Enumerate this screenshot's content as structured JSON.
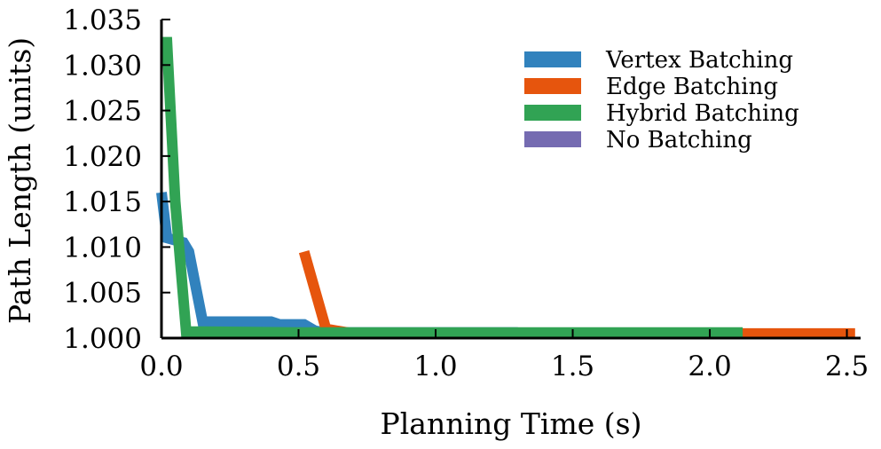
{
  "chart_data": {
    "type": "line",
    "title": "",
    "xlabel": "Planning Time (s)",
    "ylabel": "Path Length (units)",
    "xlim": [
      0.0,
      2.55
    ],
    "ylim": [
      1.0,
      1.035
    ],
    "xticks": [
      0.0,
      0.5,
      1.0,
      1.5,
      2.0,
      2.5
    ],
    "xtick_labels": [
      "0.0",
      "0.5",
      "1.0",
      "1.5",
      "2.0",
      "2.5"
    ],
    "yticks": [
      1.0,
      1.005,
      1.01,
      1.015,
      1.02,
      1.025,
      1.03,
      1.035
    ],
    "ytick_labels": [
      "1.000",
      "1.005",
      "1.010",
      "1.015",
      "1.020",
      "1.025",
      "1.030",
      "1.035"
    ],
    "grid": false,
    "legend_position": "top-right",
    "series": [
      {
        "name": "Vertex Batching",
        "color": "#3182bd",
        "x": [
          0.0,
          0.02,
          0.08,
          0.1,
          0.15,
          0.4,
          0.43,
          0.52,
          0.56,
          0.6,
          0.75,
          1.3
        ],
        "y": [
          1.016,
          1.011,
          1.0105,
          1.0095,
          1.0018,
          1.0018,
          1.0015,
          1.0015,
          1.0008,
          1.0006,
          1.0006,
          1.0006
        ]
      },
      {
        "name": "Edge Batching",
        "color": "#e6550d",
        "x": [
          0.52,
          0.6,
          0.7,
          0.8,
          1.5,
          2.0,
          2.53
        ],
        "y": [
          1.0095,
          1.001,
          1.0005,
          1.0005,
          1.0005,
          1.0005,
          1.0005
        ]
      },
      {
        "name": "Hybrid Batching",
        "color": "#31a354",
        "x": [
          0.0,
          0.02,
          0.05,
          0.09,
          0.15,
          0.5,
          1.0,
          1.5,
          2.0,
          2.12
        ],
        "y": [
          1.0325,
          1.0325,
          1.015,
          1.0007,
          1.0007,
          1.0006,
          1.0006,
          1.0006,
          1.0006,
          1.0006
        ]
      },
      {
        "name": "No Batching",
        "color": "#756bb1",
        "x": [],
        "y": []
      }
    ]
  }
}
